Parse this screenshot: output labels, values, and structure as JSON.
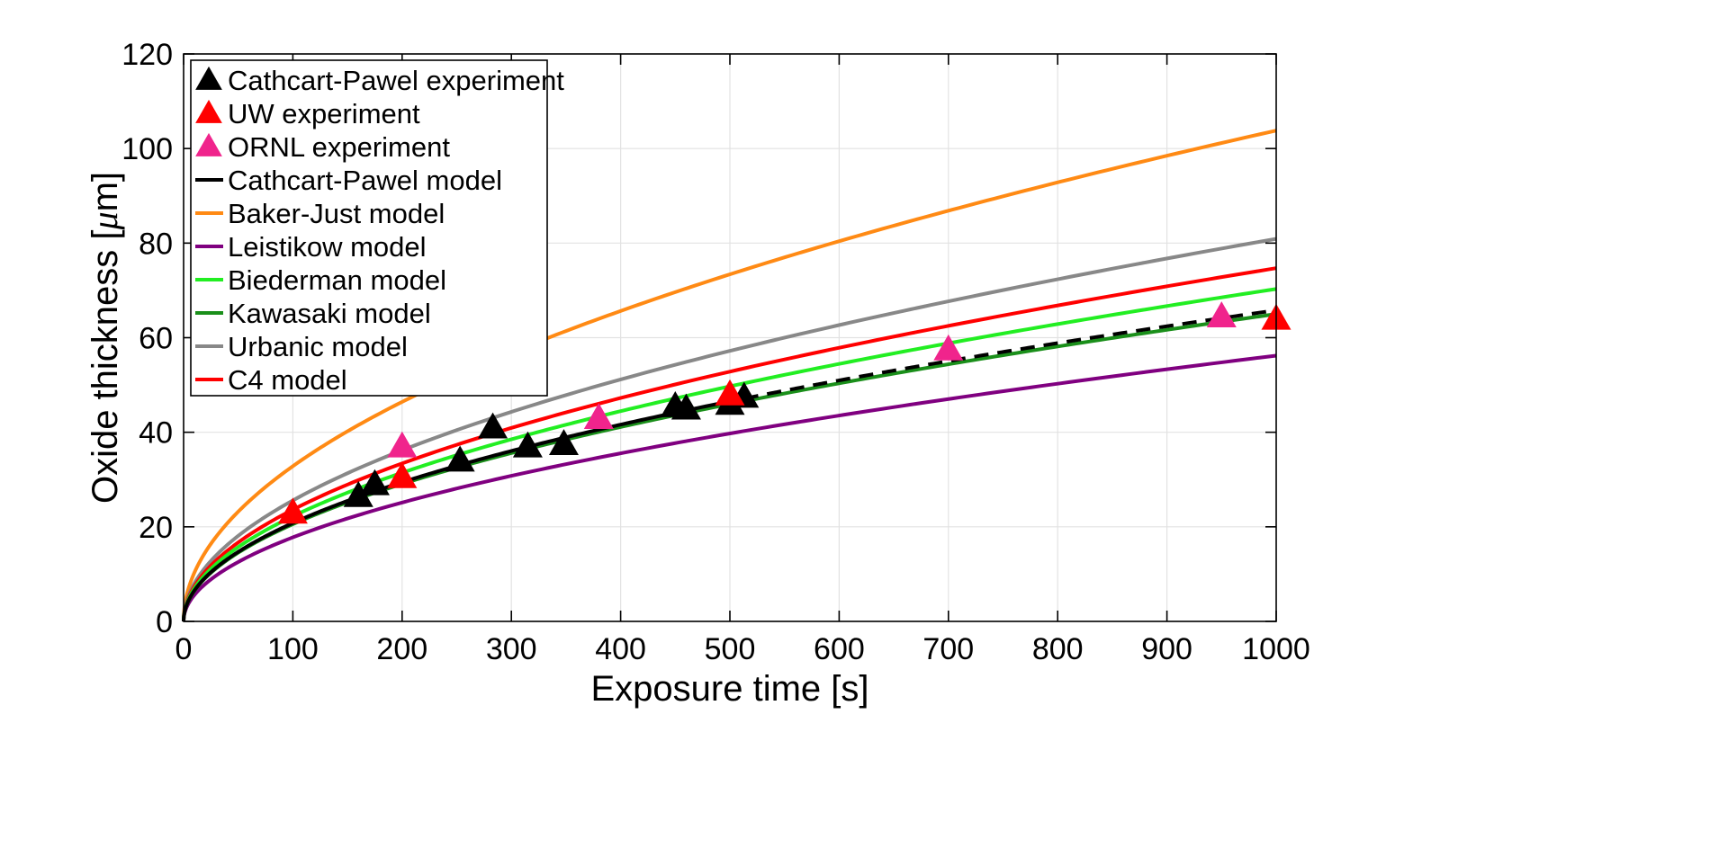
{
  "chart_data": {
    "type": "line",
    "xlabel": "Exposure time [s]",
    "ylabel_prefix": "Oxide thickness [",
    "ylabel_mu": "μ",
    "ylabel_suffix": "m]",
    "xlim": [
      0,
      1000
    ],
    "ylim": [
      0,
      120
    ],
    "xticks": [
      0,
      100,
      200,
      300,
      400,
      500,
      600,
      700,
      800,
      900,
      1000
    ],
    "yticks": [
      0,
      20,
      40,
      60,
      80,
      100,
      120
    ],
    "grid": true,
    "legend_position": "top-left",
    "experiments": [
      {
        "name": "Cathcart-Pawel experiment",
        "color": "#000000",
        "points": [
          [
            160,
            26.5
          ],
          [
            175,
            29
          ],
          [
            253,
            34
          ],
          [
            283,
            41
          ],
          [
            315,
            37
          ],
          [
            348,
            37.5
          ],
          [
            450,
            45.5
          ],
          [
            460,
            45
          ],
          [
            500,
            46
          ],
          [
            513,
            47.5
          ]
        ]
      },
      {
        "name": "UW experiment",
        "color": "#ff0000",
        "points": [
          [
            100,
            23
          ],
          [
            200,
            30.5
          ],
          [
            500,
            48
          ],
          [
            1000,
            64
          ]
        ]
      },
      {
        "name": "ORNL experiment",
        "color": "#f0248c",
        "points": [
          [
            200,
            37
          ],
          [
            380,
            43
          ],
          [
            700,
            57.5
          ],
          [
            950,
            64.5
          ]
        ]
      }
    ],
    "models": [
      {
        "name": "Cathcart-Pawel model",
        "color": "#000000",
        "y_at_1000": 65.8,
        "x_max": 513,
        "style": "solid",
        "extension_style": "dashed"
      },
      {
        "name": "Baker-Just model",
        "color": "#ff8a14",
        "y_at_1000": 103.8,
        "style": "solid"
      },
      {
        "name": "Leistikow model",
        "color": "#800080",
        "y_at_1000": 56.2,
        "style": "solid"
      },
      {
        "name": "Biederman model",
        "color": "#22ee22",
        "y_at_1000": 70.3,
        "style": "solid"
      },
      {
        "name": "Kawasaki model",
        "color": "#1a8f1a",
        "y_at_1000": 65.0,
        "style": "solid"
      },
      {
        "name": "Urbanic model",
        "color": "#888888",
        "y_at_1000": 80.9,
        "style": "solid"
      },
      {
        "name": "C4 model",
        "color": "#ff0000",
        "y_at_1000": 74.7,
        "style": "solid"
      }
    ]
  }
}
